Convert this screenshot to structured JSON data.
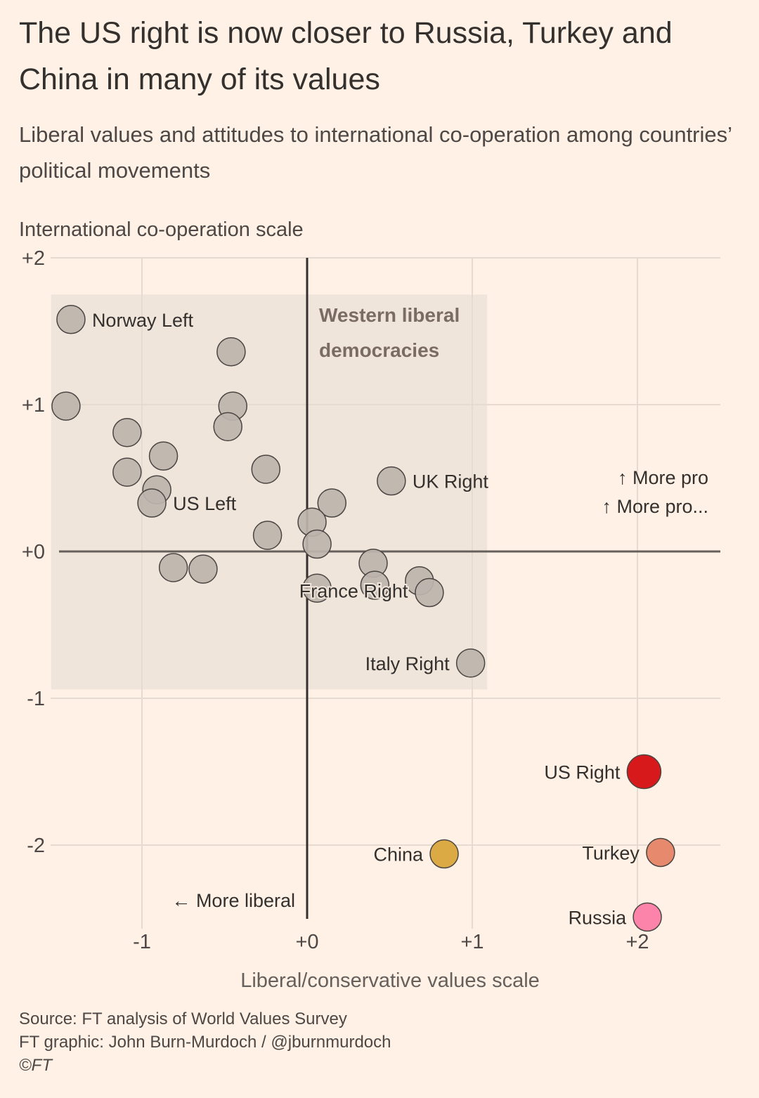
{
  "header": {
    "title": "The US right is now closer to Russia, Turkey and China in many of its values",
    "subtitle": "Liberal values and attitudes to international co-operation among countries’ political movements"
  },
  "footer": {
    "source": "Source: FT analysis of World Values Survey",
    "credit": "FT graphic: John Burn-Murdoch / @jburnmurdoch",
    "copyright": "©FT"
  },
  "colors": {
    "background": "#fff1e5",
    "region_fill": "#f0e5db",
    "grid": "#e6dbd0",
    "zero_axis_x": "#66605c",
    "zero_axis_y": "#33302e",
    "default_point": "#bdb4ac",
    "point_stroke": "#4a4542",
    "us_right": "#d7191c",
    "china": "#dcaa45",
    "turkey": "#e6896d",
    "russia": "#fc83a9",
    "region_label": "#7a6c65"
  },
  "chart_data": {
    "type": "scatter",
    "title": "The US right is now closer to Russia, Turkey and China in many of its values",
    "subtitle": "Liberal values and attitudes to international co-operation among countries’ political movements",
    "xlabel": "Liberal/conservative values scale",
    "ylabel": "International co-operation scale",
    "xlim": [
      -1.6,
      2.5
    ],
    "ylim": [
      -2.6,
      2.0
    ],
    "xticks": [
      -1,
      0,
      1,
      2
    ],
    "xtick_labels": [
      "-1",
      "+0",
      "+1",
      "+2"
    ],
    "yticks": [
      2,
      1,
      0,
      -1,
      -2
    ],
    "ytick_labels": [
      "+2",
      "+1",
      "+0",
      "-1",
      "-2"
    ],
    "grid": true,
    "annotations": {
      "x_direction": "← More liberal",
      "y_direction_1": "↑ More pro",
      "y_direction_2": "↑ More pro..."
    },
    "region": {
      "label_line1": "Western liberal",
      "label_line2": "democracies",
      "x_range": [
        -1.55,
        1.09
      ],
      "y_range": [
        -0.94,
        1.75
      ]
    },
    "points": [
      {
        "label": "Norway Left",
        "x": -1.43,
        "y": 1.58,
        "color": "default",
        "label_side": "right"
      },
      {
        "label": "",
        "x": -0.46,
        "y": 1.36,
        "color": "default"
      },
      {
        "label": "",
        "x": -1.46,
        "y": 0.99,
        "color": "default"
      },
      {
        "label": "",
        "x": -0.45,
        "y": 0.99,
        "color": "default"
      },
      {
        "label": "",
        "x": -0.48,
        "y": 0.85,
        "color": "default"
      },
      {
        "label": "",
        "x": -1.09,
        "y": 0.81,
        "color": "default"
      },
      {
        "label": "",
        "x": -0.87,
        "y": 0.65,
        "color": "default"
      },
      {
        "label": "",
        "x": -1.09,
        "y": 0.54,
        "color": "default"
      },
      {
        "label": "",
        "x": -0.25,
        "y": 0.56,
        "color": "default"
      },
      {
        "label": "",
        "x": -0.91,
        "y": 0.42,
        "color": "default"
      },
      {
        "label": "US Left",
        "x": -0.94,
        "y": 0.33,
        "color": "default",
        "label_side": "right"
      },
      {
        "label": "UK Right",
        "x": 0.51,
        "y": 0.48,
        "color": "default",
        "label_side": "right"
      },
      {
        "label": "",
        "x": 0.15,
        "y": 0.33,
        "color": "default"
      },
      {
        "label": "",
        "x": 0.03,
        "y": 0.2,
        "color": "default"
      },
      {
        "label": "",
        "x": -0.24,
        "y": 0.11,
        "color": "default"
      },
      {
        "label": "",
        "x": 0.06,
        "y": 0.05,
        "color": "default"
      },
      {
        "label": "",
        "x": -0.81,
        "y": -0.11,
        "color": "default"
      },
      {
        "label": "",
        "x": -0.63,
        "y": -0.12,
        "color": "default"
      },
      {
        "label": "",
        "x": 0.4,
        "y": -0.08,
        "color": "default"
      },
      {
        "label": "",
        "x": 0.41,
        "y": -0.23,
        "color": "default"
      },
      {
        "label": "",
        "x": 0.68,
        "y": -0.2,
        "color": "default"
      },
      {
        "label": "",
        "x": 0.74,
        "y": -0.28,
        "color": "default"
      },
      {
        "label": "France Right",
        "x": 0.06,
        "y": -0.25,
        "color": "default",
        "label_side": "center"
      },
      {
        "label": "Italy Right",
        "x": 0.99,
        "y": -0.76,
        "color": "default",
        "label_side": "left"
      },
      {
        "label": "US Right",
        "x": 2.04,
        "y": -1.5,
        "color": "us_right",
        "label_side": "left",
        "highlight": true
      },
      {
        "label": "China",
        "x": 0.83,
        "y": -2.06,
        "color": "china",
        "label_side": "left"
      },
      {
        "label": "Turkey",
        "x": 2.14,
        "y": -2.05,
        "color": "turkey",
        "label_side": "left"
      },
      {
        "label": "Russia",
        "x": 2.06,
        "y": -2.49,
        "color": "russia",
        "label_side": "left"
      }
    ]
  }
}
